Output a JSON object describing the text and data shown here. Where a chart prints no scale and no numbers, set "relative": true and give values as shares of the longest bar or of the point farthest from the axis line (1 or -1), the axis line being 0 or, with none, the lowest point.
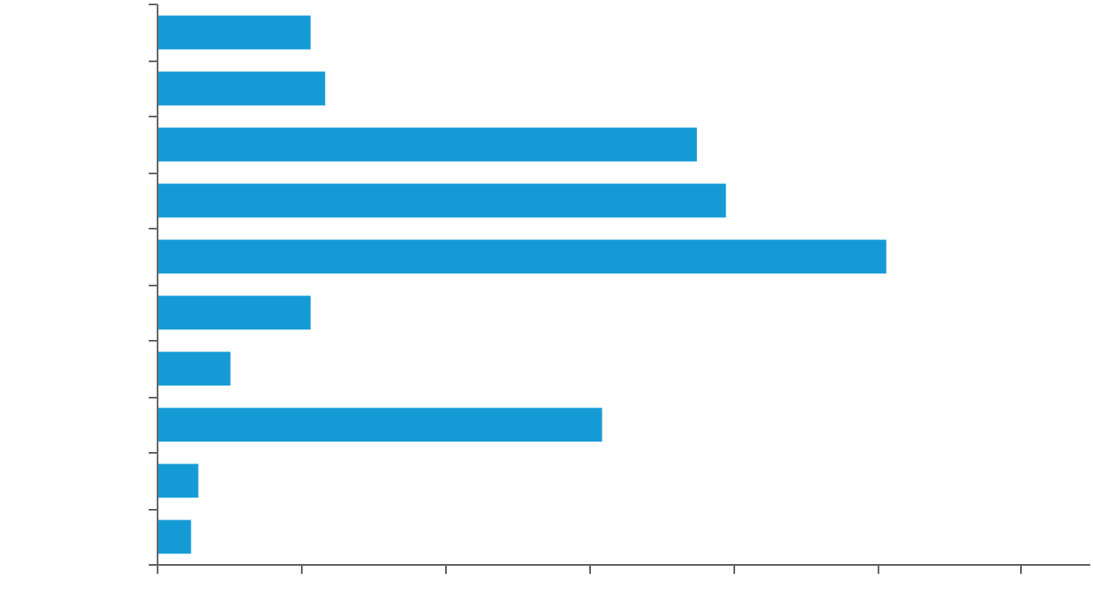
{
  "chart_data": {
    "type": "bar",
    "orientation": "horizontal",
    "relative": true,
    "tick_labels": false,
    "grid": false,
    "categories": [
      null,
      null,
      null,
      null,
      null,
      null,
      null,
      null,
      null,
      null
    ],
    "values": [
      0.21,
      0.23,
      0.74,
      0.78,
      1,
      0.21,
      0.1,
      0.61,
      0.056,
      0.046
    ],
    "color": "#149bd6"
  }
}
